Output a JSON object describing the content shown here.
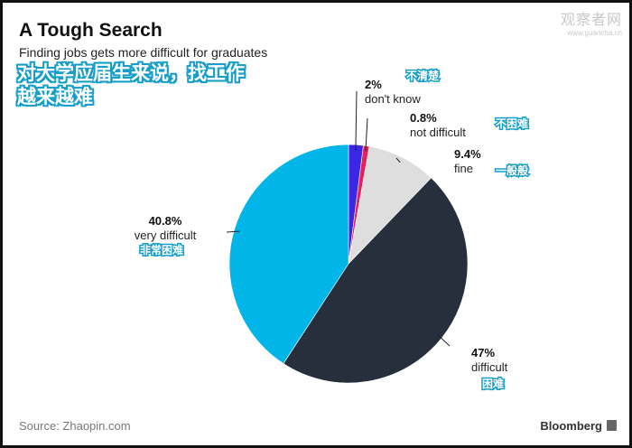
{
  "title": "A Tough Search",
  "subtitle": "Finding jobs gets more difficult for graduates",
  "cn_title_line1": "对大学应届生来说，找工作",
  "cn_title_line2": "越来越难",
  "watermark": {
    "line1": "观察者网",
    "line2": "www.guancha.cn"
  },
  "source": "Source: Zhaopin.com",
  "brand": "Bloomberg",
  "chart_data": {
    "type": "pie",
    "title": "A Tough Search",
    "subtitle": "Finding jobs gets more difficult for graduates",
    "slices": [
      {
        "label": "don't know",
        "cn_label": "不清楚",
        "value": 2,
        "display": "2%",
        "color": "#3a28e6"
      },
      {
        "label": "not difficult",
        "cn_label": "不困难",
        "value": 0.8,
        "display": "0.8%",
        "color": "#e6205a"
      },
      {
        "label": "fine",
        "cn_label": "一般般",
        "value": 9.4,
        "display": "9.4%",
        "color": "#dedede"
      },
      {
        "label": "difficult",
        "cn_label": "困难",
        "value": 47,
        "display": "47%",
        "color": "#262f3b"
      },
      {
        "label": "very difficult",
        "cn_label": "非常困难",
        "value": 40.8,
        "display": "40.8%",
        "color": "#00b5e8"
      }
    ],
    "start": "12 o'clock",
    "direction": "clockwise"
  }
}
